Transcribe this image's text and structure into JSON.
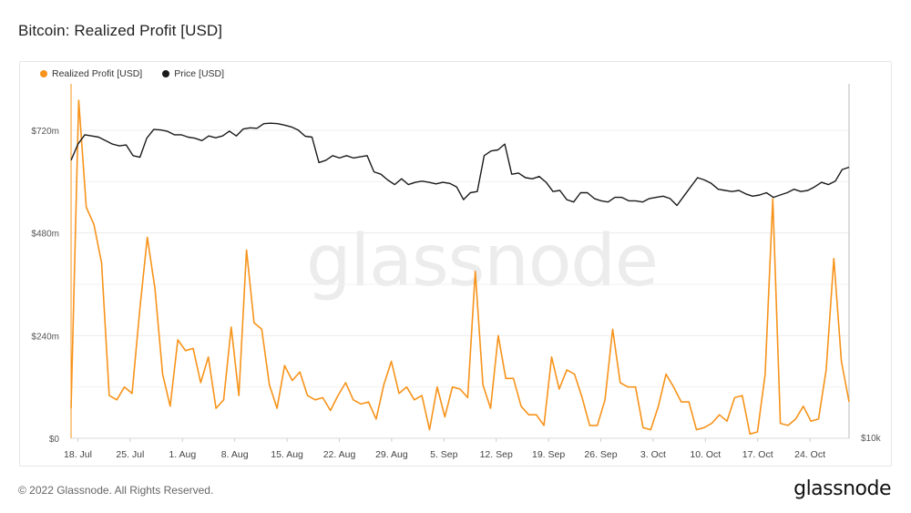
{
  "title": "Bitcoin: Realized Profit [USD]",
  "legend": [
    {
      "name": "Realized Profit [USD]",
      "color": "#f7931a"
    },
    {
      "name": "Price [USD]",
      "color": "#1a1a1a"
    }
  ],
  "watermark": "glassnode",
  "footer": "© 2022 Glassnode. All Rights Reserved.",
  "logo": "glassnode",
  "chart_data": {
    "type": "line",
    "xlabel": "",
    "ylabel": "",
    "ylim": [
      0,
      800
    ],
    "y_ticks": [
      "$0",
      "$240m",
      "$480m",
      "$720m"
    ],
    "y_tick_values": [
      0,
      240,
      480,
      720
    ],
    "y2_label": "$10k",
    "x_tick_labels": [
      "18. Jul",
      "25. Jul",
      "1. Aug",
      "8. Aug",
      "15. Aug",
      "22. Aug",
      "29. Aug",
      "5. Sep",
      "12. Sep",
      "19. Sep",
      "26. Sep",
      "3. Oct",
      "10. Oct",
      "17. Oct",
      "24. Oct"
    ],
    "x_start_date": "2022-07-18",
    "grid": "horizontal",
    "legend_position": "top-left",
    "series": [
      {
        "name": "Realized Profit [USD]",
        "axis": "left",
        "color": "#f7931a",
        "values": [
          70,
          790,
          540,
          500,
          410,
          100,
          90,
          120,
          105,
          300,
          470,
          350,
          150,
          75,
          230,
          205,
          210,
          130,
          190,
          70,
          90,
          260,
          100,
          440,
          270,
          255,
          125,
          70,
          170,
          135,
          155,
          100,
          90,
          95,
          65,
          100,
          130,
          90,
          80,
          85,
          45,
          125,
          180,
          105,
          120,
          90,
          100,
          20,
          120,
          50,
          120,
          115,
          95,
          390,
          125,
          70,
          240,
          140,
          140,
          75,
          55,
          55,
          30,
          190,
          115,
          160,
          150,
          95,
          30,
          30,
          90,
          255,
          130,
          120,
          120,
          25,
          20,
          75,
          150,
          120,
          85,
          85,
          20,
          25,
          35,
          55,
          40,
          95,
          100,
          10,
          15,
          150,
          560,
          35,
          30,
          45,
          75,
          40,
          45,
          160,
          420,
          180,
          85
        ]
      },
      {
        "name": "Price [USD]",
        "axis": "right",
        "color": "#1a1a1a",
        "values": [
          22000,
          22700,
          23100,
          23050,
          23000,
          22850,
          22700,
          22620,
          22660,
          22200,
          22130,
          22950,
          23330,
          23310,
          23250,
          23100,
          23100,
          23000,
          22950,
          22850,
          23050,
          22970,
          23050,
          23260,
          23050,
          23350,
          23400,
          23380,
          23580,
          23600,
          23580,
          23520,
          23440,
          23300,
          23040,
          23000,
          21900,
          22000,
          22200,
          22100,
          22200,
          22100,
          22150,
          22200,
          21500,
          21400,
          21150,
          20950,
          21200,
          20950,
          21050,
          21100,
          21050,
          20980,
          21050,
          21000,
          20850,
          20300,
          20600,
          20650,
          22200,
          22400,
          22450,
          22700,
          21400,
          21450,
          21250,
          21200,
          21300,
          21050,
          20650,
          20700,
          20300,
          20200,
          20600,
          20600,
          20350,
          20250,
          20200,
          20400,
          20400,
          20250,
          20250,
          20200,
          20350,
          20400,
          20450,
          20350,
          20050,
          20450,
          20850,
          21250,
          21150,
          21000,
          20750,
          20700,
          20650,
          20700,
          20550,
          20450,
          20500,
          20600,
          20400,
          20500,
          20600,
          20750,
          20650,
          20700,
          20850,
          21050,
          20950,
          21100,
          21600,
          21700
        ]
      }
    ]
  }
}
